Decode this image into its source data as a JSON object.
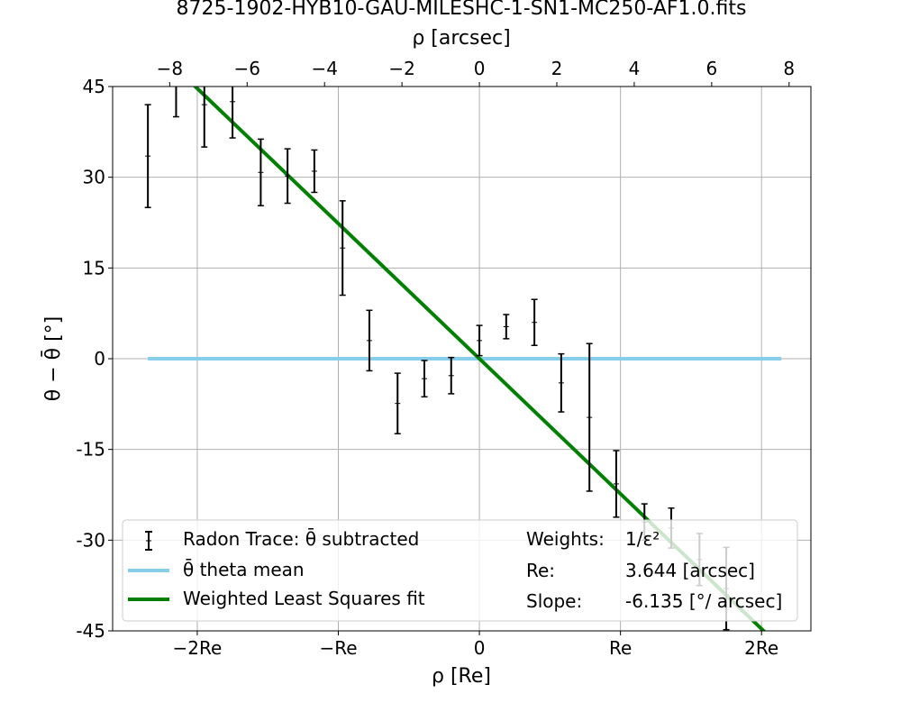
{
  "chart_data": {
    "type": "scatter",
    "title": "8725-1902-HYB10-GAU-MILESHC-1-SN1-MC250-AF1.0.fits",
    "xlabel": "ρ [Re]",
    "x2label": "ρ [arcsec]",
    "ylabel": "θ − θ̄ [°]",
    "xlim": [
      -2.6,
      2.35
    ],
    "ylim": [
      -45,
      45
    ],
    "x_ticks": [
      -2,
      -1,
      0,
      1,
      2
    ],
    "x_tick_labels": [
      "−2Re",
      "−Re",
      "0",
      "Re",
      "2Re"
    ],
    "x2_ticks": [
      -8,
      -6,
      -4,
      -2,
      0,
      2,
      4,
      6,
      8
    ],
    "x2_tick_labels": [
      "−8",
      "−6",
      "−4",
      "−2",
      "0",
      "2",
      "4",
      "6",
      "8"
    ],
    "y_ticks": [
      45,
      30,
      15,
      0,
      -15,
      -30,
      -45
    ],
    "y_tick_labels": [
      "45",
      "30",
      "15",
      "0",
      "-15",
      "-30",
      "-45"
    ],
    "grid": true,
    "legend_position": "bottom",
    "series": [
      {
        "name": "Radon Trace: θ̄ subtracted",
        "kind": "errorbar",
        "color": "#000000",
        "points": [
          {
            "x": -2.35,
            "y": 33.5,
            "err": 8.5
          },
          {
            "x": -2.15,
            "y": 47.5,
            "err": 7.5
          },
          {
            "x": -1.95,
            "y": 42.0,
            "err": 7.0
          },
          {
            "x": -1.75,
            "y": 42.5,
            "err": 6.0
          },
          {
            "x": -1.55,
            "y": 30.8,
            "err": 5.5
          },
          {
            "x": -1.36,
            "y": 30.2,
            "err": 4.5
          },
          {
            "x": -1.17,
            "y": 31.0,
            "err": 3.5
          },
          {
            "x": -0.97,
            "y": 18.3,
            "err": 7.8
          },
          {
            "x": -0.78,
            "y": 3.0,
            "err": 5.0
          },
          {
            "x": -0.58,
            "y": -7.4,
            "err": 5.0
          },
          {
            "x": -0.39,
            "y": -3.3,
            "err": 3.0
          },
          {
            "x": -0.2,
            "y": -2.8,
            "err": 3.0
          },
          {
            "x": 0.0,
            "y": 3.0,
            "err": 2.5
          },
          {
            "x": 0.19,
            "y": 5.3,
            "err": 2.0
          },
          {
            "x": 0.39,
            "y": 6.0,
            "err": 3.8
          },
          {
            "x": 0.58,
            "y": -4.0,
            "err": 4.8
          },
          {
            "x": 0.78,
            "y": -9.7,
            "err": 12.2
          },
          {
            "x": 0.97,
            "y": -20.7,
            "err": 5.5
          },
          {
            "x": 1.17,
            "y": -27.0,
            "err": 3.0
          },
          {
            "x": 1.36,
            "y": -28.0,
            "err": 3.3
          },
          {
            "x": 1.56,
            "y": -33.2,
            "err": 4.3
          },
          {
            "x": 1.75,
            "y": -38.0,
            "err": 6.8
          }
        ]
      },
      {
        "name": "θ̄ theta mean",
        "kind": "line",
        "color": "#87ceeb",
        "x": [
          -2.35,
          2.14
        ],
        "y": [
          0,
          0
        ]
      },
      {
        "name": "Weighted Least Squares fit",
        "kind": "line",
        "color": "#008000",
        "x": [
          -2.35,
          2.14
        ],
        "y": [
          52.5,
          -47.8
        ]
      }
    ],
    "legend_info": {
      "weights_label": "Weights:",
      "weights_value": "1/ε²",
      "re_label": "Re:",
      "re_value": "3.644 [arcsec]",
      "slope_label": "Slope:",
      "slope_value": "-6.135 [°/ arcsec]"
    },
    "re_arcsec": 3.644
  }
}
